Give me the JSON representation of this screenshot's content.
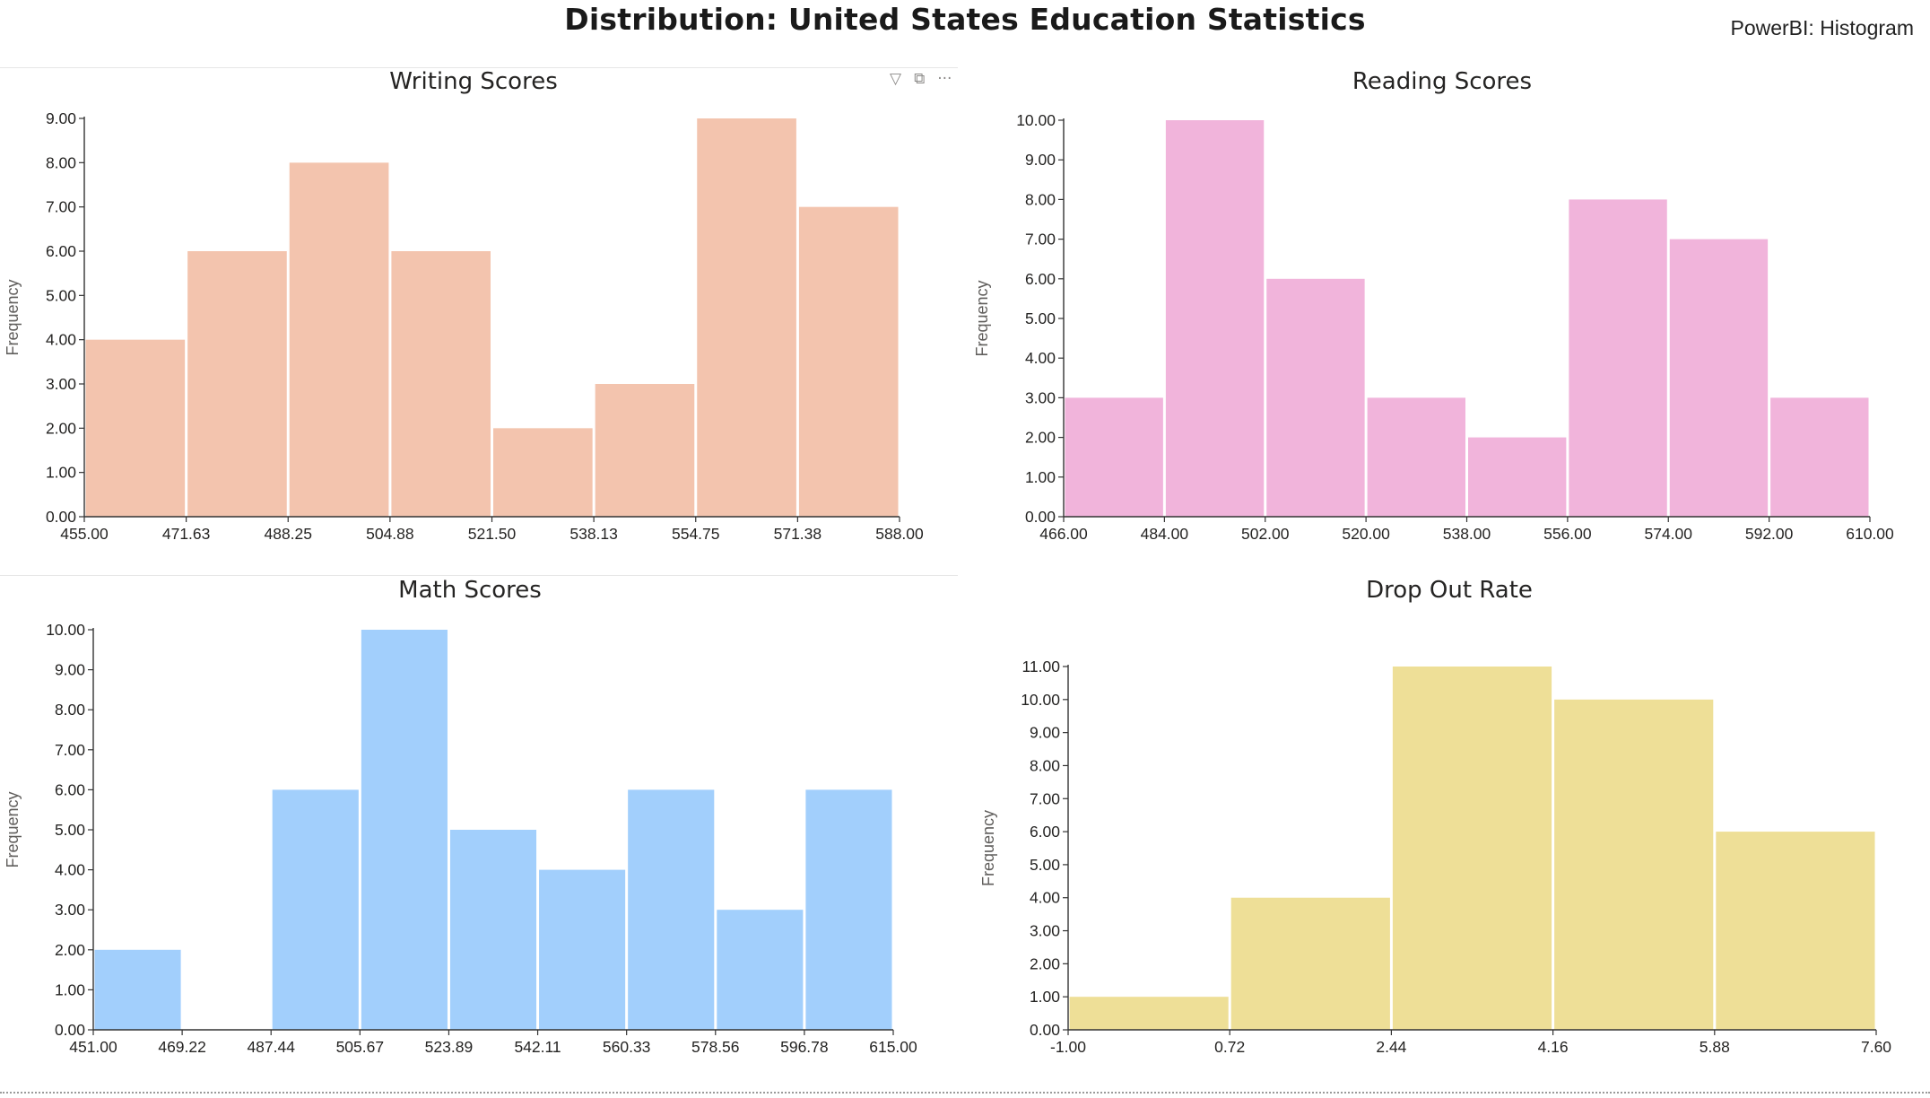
{
  "header": {
    "title": "Distribution: United States Education Statistics",
    "brand": "PowerBI: Histogram"
  },
  "icons": {
    "filter": "filter-icon",
    "focus": "focus-mode-icon",
    "more": "more-options-icon"
  },
  "chart_data": [
    {
      "type": "bar",
      "title": "Writing Scores",
      "ylabel": "Frequency",
      "color": "#F3C4AE",
      "bins": [
        {
          "x0": 455.0,
          "x1": 471.63,
          "count": 4
        },
        {
          "x0": 471.63,
          "x1": 488.25,
          "count": 6
        },
        {
          "x0": 488.25,
          "x1": 504.88,
          "count": 8
        },
        {
          "x0": 504.88,
          "x1": 521.5,
          "count": 6
        },
        {
          "x0": 521.5,
          "x1": 538.13,
          "count": 2
        },
        {
          "x0": 538.13,
          "x1": 554.75,
          "count": 3
        },
        {
          "x0": 554.75,
          "x1": 571.38,
          "count": 9
        },
        {
          "x0": 571.38,
          "x1": 588.0,
          "count": 7
        }
      ],
      "xticks": [
        "455.00",
        "471.63",
        "488.25",
        "504.88",
        "521.50",
        "538.13",
        "554.75",
        "571.38",
        "588.00"
      ],
      "yticks": [
        "0.00",
        "1.00",
        "2.00",
        "3.00",
        "4.00",
        "5.00",
        "6.00",
        "7.00",
        "8.00",
        "9.00"
      ],
      "xlim": [
        455.0,
        588.0
      ],
      "ylim": [
        0,
        9
      ]
    },
    {
      "type": "bar",
      "title": "Reading Scores",
      "ylabel": "Frequency",
      "color": "#F1B4DB",
      "bins": [
        {
          "x0": 466.0,
          "x1": 484.0,
          "count": 3
        },
        {
          "x0": 484.0,
          "x1": 502.0,
          "count": 10
        },
        {
          "x0": 502.0,
          "x1": 520.0,
          "count": 6
        },
        {
          "x0": 520.0,
          "x1": 538.0,
          "count": 3
        },
        {
          "x0": 538.0,
          "x1": 556.0,
          "count": 2
        },
        {
          "x0": 556.0,
          "x1": 574.0,
          "count": 8
        },
        {
          "x0": 574.0,
          "x1": 592.0,
          "count": 7
        },
        {
          "x0": 592.0,
          "x1": 610.0,
          "count": 3
        }
      ],
      "xticks": [
        "466.00",
        "484.00",
        "502.00",
        "520.00",
        "538.00",
        "556.00",
        "574.00",
        "592.00",
        "610.00"
      ],
      "yticks": [
        "0.00",
        "1.00",
        "2.00",
        "3.00",
        "4.00",
        "5.00",
        "6.00",
        "7.00",
        "8.00",
        "9.00",
        "10.00"
      ],
      "xlim": [
        466.0,
        610.0
      ],
      "ylim": [
        0,
        10
      ]
    },
    {
      "type": "bar",
      "title": "Math Scores",
      "ylabel": "Frequency",
      "color": "#A2CFFC",
      "bins": [
        {
          "x0": 451.0,
          "x1": 469.22,
          "count": 2
        },
        {
          "x0": 469.22,
          "x1": 487.44,
          "count": 0
        },
        {
          "x0": 487.44,
          "x1": 505.67,
          "count": 6
        },
        {
          "x0": 505.67,
          "x1": 523.89,
          "count": 10
        },
        {
          "x0": 523.89,
          "x1": 542.11,
          "count": 5
        },
        {
          "x0": 542.11,
          "x1": 560.33,
          "count": 4
        },
        {
          "x0": 560.33,
          "x1": 578.56,
          "count": 6
        },
        {
          "x0": 578.56,
          "x1": 596.78,
          "count": 3
        },
        {
          "x0": 596.78,
          "x1": 615.0,
          "count": 6
        }
      ],
      "xticks": [
        "451.00",
        "469.22",
        "487.44",
        "505.67",
        "523.89",
        "542.11",
        "560.33",
        "578.56",
        "596.78",
        "615.00"
      ],
      "yticks": [
        "0.00",
        "1.00",
        "2.00",
        "3.00",
        "4.00",
        "5.00",
        "6.00",
        "7.00",
        "8.00",
        "9.00",
        "10.00"
      ],
      "xlim": [
        451.0,
        615.0
      ],
      "ylim": [
        0,
        10
      ]
    },
    {
      "type": "bar",
      "title": "Drop Out Rate",
      "ylabel": "Frequency",
      "color": "#EEDF97",
      "bins": [
        {
          "x0": -1.0,
          "x1": 0.72,
          "count": 1
        },
        {
          "x0": 0.72,
          "x1": 2.44,
          "count": 4
        },
        {
          "x0": 2.44,
          "x1": 4.16,
          "count": 11
        },
        {
          "x0": 4.16,
          "x1": 5.88,
          "count": 10
        },
        {
          "x0": 5.88,
          "x1": 7.6,
          "count": 6
        }
      ],
      "xticks": [
        "-1.00",
        "0.72",
        "2.44",
        "4.16",
        "5.88",
        "7.60"
      ],
      "yticks": [
        "0.00",
        "1.00",
        "2.00",
        "3.00",
        "4.00",
        "5.00",
        "6.00",
        "7.00",
        "8.00",
        "9.00",
        "10.00",
        "11.00"
      ],
      "xlim": [
        -1.0,
        7.6
      ],
      "ylim": [
        0,
        11
      ]
    }
  ]
}
